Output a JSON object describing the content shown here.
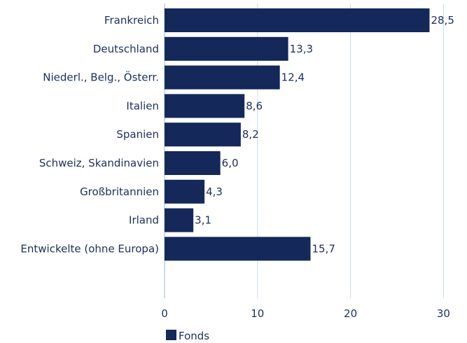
{
  "chart_data": {
    "type": "bar",
    "orientation": "horizontal",
    "categories": [
      "Frankreich",
      "Deutschland",
      "Niederl., Belg., Österr.",
      "Italien",
      "Spanien",
      "Schweiz, Skandinavien",
      "Großbritannien",
      "Irland",
      "Entwickelte (ohne Europa)"
    ],
    "series": [
      {
        "name": "Fonds",
        "values": [
          28.5,
          13.3,
          12.4,
          8.6,
          8.2,
          6.0,
          4.3,
          3.1,
          15.7
        ],
        "labels": [
          "28,5",
          "13,3",
          "12,4",
          "8,6",
          "8,2",
          "6,0",
          "4,3",
          "3,1",
          "15,7"
        ]
      }
    ],
    "xlim": [
      0,
      30
    ],
    "xticks": [
      "0",
      "10",
      "20",
      "30"
    ],
    "grid": "vertical",
    "legend_position": "bottom-left",
    "colors": {
      "bar": "#14285a",
      "text": "#1b2f5e",
      "grid": "#c9dcea",
      "axis": "#9ab8cf"
    }
  }
}
